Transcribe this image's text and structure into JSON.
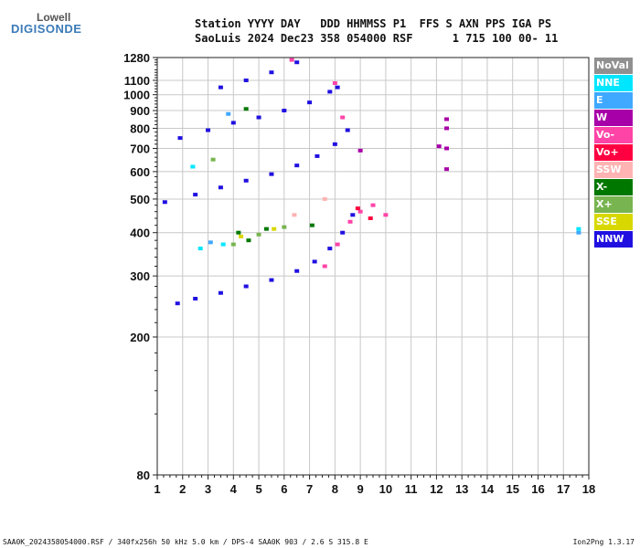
{
  "logo": {
    "line1": "Lowell",
    "line2": "DIGISONDE"
  },
  "header": {
    "line1": "Station YYYY DAY   DDD HHMMSS P1  FFS S AXN PPS IGA PS",
    "line2": "SaoLuis 2024 Dec23 358 054000 RSF      1 715 100 00- 11"
  },
  "footer": {
    "left": "SAA0K_2024358054000.RSF / 340fx256h 50 kHz 5.0 km / DPS-4 SAA0K 903 / 2.6 S 315.8 E",
    "right": "Ion2Png 1.3.17"
  },
  "legend": [
    {
      "label": "NoVal",
      "color": "#909090"
    },
    {
      "label": "NNE",
      "color": "#00e6ff"
    },
    {
      "label": "E",
      "color": "#3fa8ff"
    },
    {
      "label": "W",
      "color": "#a800a8"
    },
    {
      "label": "Vo-",
      "color": "#ff44a8"
    },
    {
      "label": "Vo+",
      "color": "#ff0040"
    },
    {
      "label": "SSW",
      "color": "#ffb3b3"
    },
    {
      "label": "X-",
      "color": "#007800"
    },
    {
      "label": "X+",
      "color": "#78b450"
    },
    {
      "label": "SSE",
      "color": "#d8d800"
    },
    {
      "label": "NNW",
      "color": "#2010e0"
    }
  ],
  "chart_data": {
    "type": "scatter",
    "title": "",
    "xlabel": "",
    "ylabel": "",
    "xlim": [
      1,
      18
    ],
    "ylim": [
      80,
      1280
    ],
    "y_scale": "log",
    "grid": true,
    "x_ticks": [
      1,
      2,
      3,
      4,
      5,
      6,
      7,
      8,
      9,
      10,
      11,
      12,
      13,
      14,
      15,
      16,
      17,
      18
    ],
    "y_ticks": [
      80,
      200,
      300,
      400,
      500,
      600,
      700,
      800,
      900,
      1000,
      1100,
      1280
    ],
    "series": [
      {
        "name": "NNW",
        "color": "#2010e0",
        "points": [
          [
            1.8,
            250
          ],
          [
            2.5,
            258
          ],
          [
            3.5,
            268
          ],
          [
            4.5,
            280
          ],
          [
            5.5,
            292
          ],
          [
            6.5,
            310
          ],
          [
            7.2,
            330
          ],
          [
            7.8,
            360
          ],
          [
            8.3,
            400
          ],
          [
            8.7,
            450
          ],
          [
            1.3,
            490
          ],
          [
            2.5,
            515
          ],
          [
            3.5,
            540
          ],
          [
            4.5,
            565
          ],
          [
            5.5,
            590
          ],
          [
            6.5,
            625
          ],
          [
            7.3,
            665
          ],
          [
            8.0,
            720
          ],
          [
            8.5,
            790
          ],
          [
            1.9,
            750
          ],
          [
            3.0,
            790
          ],
          [
            4.0,
            830
          ],
          [
            5.0,
            860
          ],
          [
            6.0,
            900
          ],
          [
            7.0,
            950
          ],
          [
            7.8,
            1020
          ],
          [
            8.1,
            1050
          ],
          [
            3.5,
            1050
          ],
          [
            4.5,
            1100
          ],
          [
            5.5,
            1160
          ],
          [
            6.5,
            1240
          ]
        ]
      },
      {
        "name": "Vo-",
        "color": "#ff44a8",
        "points": [
          [
            7.6,
            320
          ],
          [
            8.1,
            370
          ],
          [
            8.6,
            430
          ],
          [
            9.0,
            460
          ],
          [
            9.5,
            480
          ],
          [
            10.0,
            450
          ],
          [
            8.3,
            860
          ],
          [
            8.0,
            1080
          ],
          [
            6.3,
            1260
          ]
        ]
      },
      {
        "name": "W",
        "color": "#a800a8",
        "points": [
          [
            12.4,
            610
          ],
          [
            12.4,
            700
          ],
          [
            12.4,
            800
          ],
          [
            12.4,
            850
          ],
          [
            12.1,
            710
          ],
          [
            9.0,
            690
          ]
        ]
      },
      {
        "name": "X-",
        "color": "#007800",
        "points": [
          [
            4.2,
            400
          ],
          [
            4.6,
            380
          ],
          [
            5.3,
            410
          ],
          [
            7.1,
            420
          ],
          [
            4.5,
            910
          ]
        ]
      },
      {
        "name": "X+",
        "color": "#78b450",
        "points": [
          [
            4.0,
            370
          ],
          [
            5.0,
            395
          ],
          [
            6.0,
            415
          ],
          [
            3.2,
            650
          ]
        ]
      },
      {
        "name": "SSE",
        "color": "#d8d800",
        "points": [
          [
            4.3,
            390
          ],
          [
            5.6,
            410
          ]
        ]
      },
      {
        "name": "NNE",
        "color": "#00e6ff",
        "points": [
          [
            2.7,
            360
          ],
          [
            3.6,
            370
          ],
          [
            2.4,
            620
          ],
          [
            17.6,
            410
          ]
        ]
      },
      {
        "name": "E",
        "color": "#3fa8ff",
        "points": [
          [
            3.1,
            375
          ],
          [
            3.8,
            880
          ],
          [
            17.6,
            400
          ]
        ]
      },
      {
        "name": "Vo+",
        "color": "#ff0040",
        "points": [
          [
            8.9,
            470
          ],
          [
            9.4,
            440
          ]
        ]
      },
      {
        "name": "SSW",
        "color": "#ffb3b3",
        "points": [
          [
            6.4,
            450
          ],
          [
            7.6,
            500
          ]
        ]
      }
    ]
  }
}
